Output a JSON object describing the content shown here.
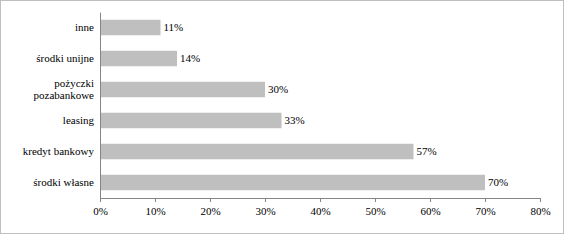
{
  "chart_data": {
    "type": "bar",
    "orientation": "horizontal",
    "categories": [
      "inne",
      "środki unijne",
      "pożyczki pozabankowe",
      "leasing",
      "kredyt bankowy",
      "środki własne"
    ],
    "values": [
      11,
      14,
      30,
      33,
      57,
      70
    ],
    "value_labels": [
      "11%",
      "14%",
      "30%",
      "33%",
      "57%",
      "70%"
    ],
    "color": "#bfbfbf",
    "xlim": [
      0,
      80
    ],
    "xticks": [
      {
        "value": 0,
        "label": "0%"
      },
      {
        "value": 10,
        "label": "10%"
      },
      {
        "value": 20,
        "label": "20%"
      },
      {
        "value": 30,
        "label": "30%"
      },
      {
        "value": 40,
        "label": "40%"
      },
      {
        "value": 50,
        "label": "50%"
      },
      {
        "value": 60,
        "label": "60%"
      },
      {
        "value": 70,
        "label": "70%"
      },
      {
        "value": 80,
        "label": "80%"
      }
    ],
    "grid": false,
    "data_labels": true
  }
}
